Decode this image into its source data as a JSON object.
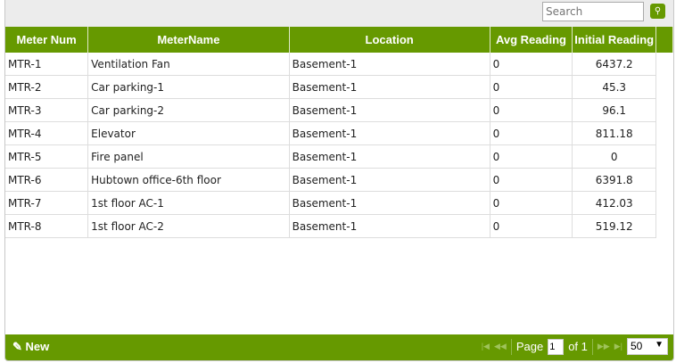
{
  "search": {
    "placeholder": "Search"
  },
  "columns": [
    "Meter Num",
    "MeterName",
    "Location",
    "Avg Reading",
    "Initial Reading"
  ],
  "rows": [
    [
      "MTR-1",
      "Ventilation Fan",
      "Basement-1",
      "0",
      "6437.2"
    ],
    [
      "MTR-2",
      "Car parking-1",
      "Basement-1",
      "0",
      "45.3"
    ],
    [
      "MTR-3",
      "Car parking-2",
      "Basement-1",
      "0",
      "96.1"
    ],
    [
      "MTR-4",
      "Elevator",
      "Basement-1",
      "0",
      "811.18"
    ],
    [
      "MTR-5",
      "Fire panel",
      "Basement-1",
      "0",
      "0"
    ],
    [
      "MTR-6",
      "Hubtown office-6th floor",
      "Basement-1",
      "0",
      "6391.8"
    ],
    [
      "MTR-7",
      "1st floor AC-1",
      "Basement-1",
      "0",
      "412.03"
    ],
    [
      "MTR-8",
      "1st floor AC-2",
      "Basement-1",
      "0",
      "519.12"
    ]
  ],
  "footer": {
    "new_label": "New",
    "page_label": "Page",
    "page_value": "1",
    "of_label": "of 1",
    "page_size": "50"
  },
  "colors": {
    "accent": "#669900"
  }
}
